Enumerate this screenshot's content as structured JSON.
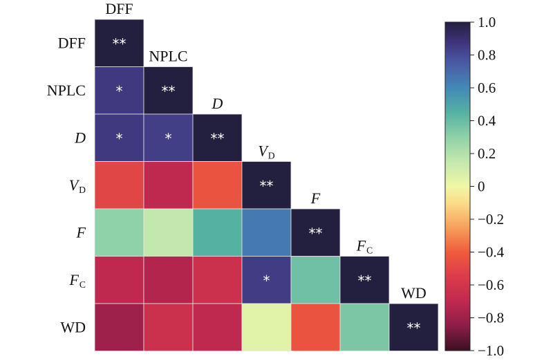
{
  "chart_data": {
    "type": "heatmap",
    "layout": "lower-triangle",
    "variables": [
      {
        "main": "DFF",
        "sub": "",
        "italic": false
      },
      {
        "main": "NPLC",
        "sub": "",
        "italic": false
      },
      {
        "main": "D",
        "sub": "",
        "italic": true
      },
      {
        "main": "V",
        "sub": "D",
        "italic": true
      },
      {
        "main": "F",
        "sub": "",
        "italic": true
      },
      {
        "main": "F",
        "sub": "C",
        "italic": true
      },
      {
        "main": "WD",
        "sub": "",
        "italic": false
      }
    ],
    "matrix": [
      [
        1.0
      ],
      [
        0.86,
        1.0
      ],
      [
        0.86,
        0.84,
        1.0
      ],
      [
        -0.5,
        -0.7,
        -0.44,
        1.0
      ],
      [
        0.3,
        0.15,
        0.45,
        0.65,
        1.0
      ],
      [
        -0.7,
        -0.74,
        -0.64,
        0.85,
        0.38,
        1.0
      ],
      [
        -0.8,
        -0.64,
        -0.7,
        0.05,
        -0.44,
        0.35,
        1.0
      ]
    ],
    "significance": [
      [
        "**"
      ],
      [
        "*",
        "**"
      ],
      [
        "*",
        "*",
        "**"
      ],
      [
        "",
        "",
        "",
        "**"
      ],
      [
        "",
        "",
        "",
        "",
        "**"
      ],
      [
        "",
        "",
        "",
        "*",
        "",
        "**"
      ],
      [
        "",
        "",
        "",
        "",
        "",
        "",
        "**"
      ]
    ],
    "colorbar": {
      "range": [
        -1.0,
        1.0
      ],
      "ticks": [
        "1.0",
        "0.8",
        "0.6",
        "0.4",
        "0.2",
        "0",
        "−0.2",
        "−0.4",
        "−0.6",
        "−0.8",
        "−1.0"
      ],
      "tick_values": [
        1.0,
        0.8,
        0.6,
        0.4,
        0.2,
        0,
        -0.2,
        -0.4,
        -0.6,
        -0.8,
        -1.0
      ],
      "colormap": "Spectral_r"
    },
    "colors": {
      "colormap_stops": [
        [
          -1.0,
          "#3a1022"
        ],
        [
          -0.85,
          "#8c1d47"
        ],
        [
          -0.7,
          "#c0294f"
        ],
        [
          -0.55,
          "#db3b4b"
        ],
        [
          -0.4,
          "#ee5c3c"
        ],
        [
          -0.25,
          "#f6a05b"
        ],
        [
          -0.1,
          "#fbdd8a"
        ],
        [
          0.0,
          "#f0f7a6"
        ],
        [
          0.15,
          "#c3e8ae"
        ],
        [
          0.3,
          "#8fd1a8"
        ],
        [
          0.45,
          "#55b1a2"
        ],
        [
          0.6,
          "#4389b6"
        ],
        [
          0.75,
          "#4a5aa6"
        ],
        [
          0.88,
          "#3e3379"
        ],
        [
          1.0,
          "#23203f"
        ]
      ],
      "cell_text": "#ffffff",
      "grid_line": "#e8e8e8"
    }
  }
}
